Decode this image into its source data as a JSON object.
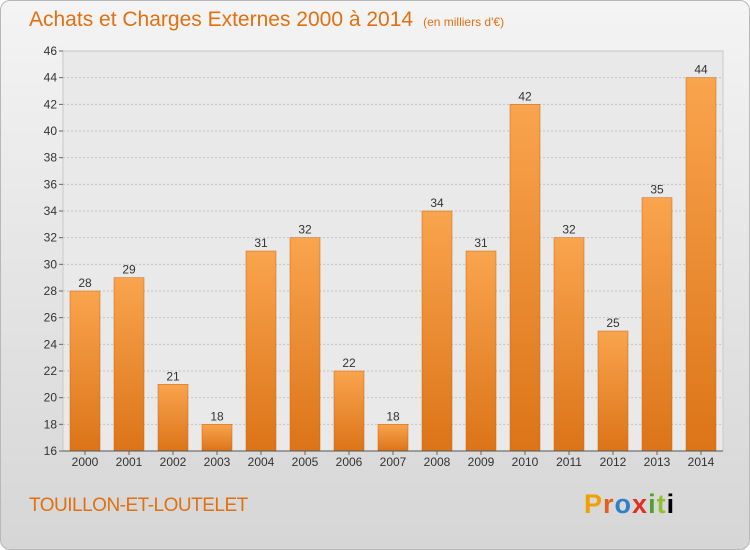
{
  "header": {
    "title": "Achats et Charges Externes 2000 à 2014",
    "subtitle": "(en milliers d'€)"
  },
  "footer": {
    "commune": "TOUILLON-ET-LOUTELET",
    "logo_letters": [
      "P",
      "r",
      "o",
      "x",
      "i",
      "t",
      "i"
    ]
  },
  "colors": {
    "accent": "#e07010",
    "bar_light": "#f7a24c",
    "bar_dark": "#d9721a"
  },
  "chart_data": {
    "type": "bar",
    "title": "Achats et Charges Externes 2000 à 2014",
    "subtitle": "(en milliers d'€)",
    "categories": [
      "2000",
      "2001",
      "2002",
      "2003",
      "2004",
      "2005",
      "2006",
      "2007",
      "2008",
      "2009",
      "2010",
      "2011",
      "2012",
      "2013",
      "2014"
    ],
    "values": [
      28,
      29,
      21,
      18,
      31,
      32,
      22,
      18,
      34,
      31,
      42,
      32,
      25,
      35,
      44
    ],
    "data_labels": [
      "28",
      "29",
      "21",
      "18",
      "31",
      "32",
      "22",
      "18",
      "34",
      "31",
      "42",
      "32",
      "25",
      "35",
      "44"
    ],
    "ylim": [
      16,
      46
    ],
    "yticks": [
      16,
      18,
      20,
      22,
      24,
      26,
      28,
      30,
      32,
      34,
      36,
      38,
      40,
      42,
      44,
      46
    ],
    "grid": true,
    "xlabel": "",
    "ylabel": ""
  }
}
